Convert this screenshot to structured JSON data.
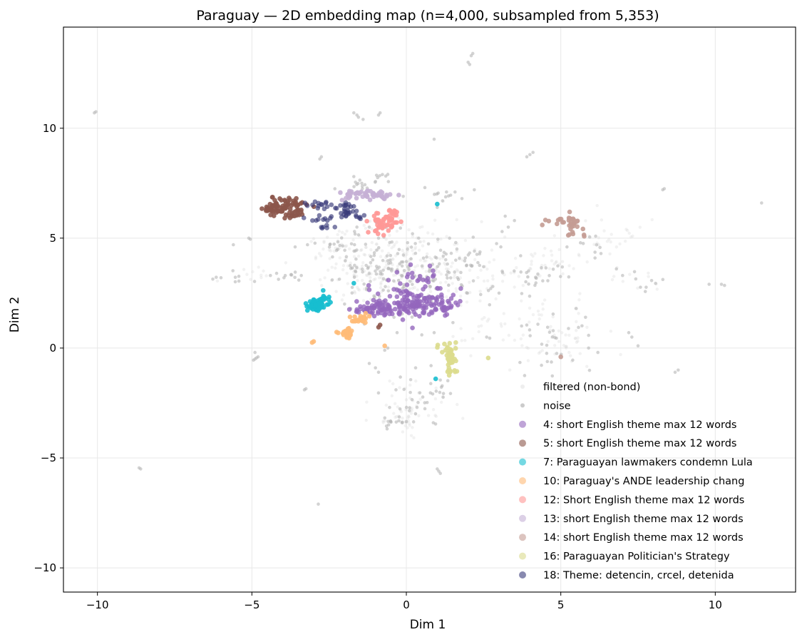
{
  "chart_data": {
    "type": "scatter",
    "title": "Paraguay — 2D embedding map (n=4,000, subsampled from 5,353)",
    "xlabel": "Dim 1",
    "ylabel": "Dim 2",
    "xlim": [
      -11.1,
      12.6
    ],
    "ylim": [
      -11.1,
      14.6
    ],
    "xticks": [
      -10,
      -5,
      0,
      5,
      10
    ],
    "xtick_labels": [
      "−10",
      "−5",
      "0",
      "5",
      "10"
    ],
    "yticks": [
      -10,
      -5,
      0,
      5,
      10
    ],
    "ytick_labels": [
      "−10",
      "−5",
      "0",
      "5",
      "10"
    ],
    "grid": true,
    "legend_position": "lower right",
    "background_groups": [
      {
        "name": "filtered (non-bond)",
        "color": "#d9d9d9",
        "alpha": 0.35,
        "size": 2.2,
        "blobs": [
          [
            0.0,
            4.0,
            1.2,
            0.9,
            140
          ],
          [
            -1.2,
            3.4,
            0.9,
            0.6,
            60
          ],
          [
            1.0,
            3.3,
            0.9,
            0.6,
            60
          ],
          [
            4.4,
            3.8,
            0.6,
            0.4,
            40
          ],
          [
            4.6,
            0.6,
            0.9,
            0.8,
            60
          ],
          [
            0.2,
            -2.5,
            0.6,
            0.6,
            40
          ],
          [
            -0.2,
            -3.3,
            0.4,
            0.2,
            20
          ],
          [
            6.5,
            5.0,
            0.8,
            0.5,
            25
          ],
          [
            -2.5,
            4.6,
            0.6,
            0.4,
            25
          ],
          [
            2.5,
            1.0,
            0.8,
            0.6,
            25
          ],
          [
            -5.0,
            3.3,
            0.5,
            0.2,
            12
          ],
          [
            7.5,
            3.0,
            0.4,
            0.3,
            10
          ]
        ]
      },
      {
        "name": "noise",
        "color": "#b5b5b5",
        "alpha": 0.6,
        "size": 2.3,
        "blobs": [
          [
            -0.3,
            3.8,
            0.9,
            0.9,
            90
          ],
          [
            0.8,
            2.8,
            0.9,
            0.7,
            50
          ],
          [
            -1.5,
            3.7,
            0.6,
            0.5,
            30
          ],
          [
            2.1,
            4.0,
            0.6,
            0.5,
            25
          ],
          [
            4.2,
            3.3,
            0.5,
            0.5,
            25
          ],
          [
            4.8,
            0.2,
            0.6,
            0.6,
            30
          ],
          [
            0.3,
            -2.5,
            0.5,
            0.6,
            25
          ],
          [
            -0.4,
            -3.4,
            0.3,
            0.15,
            14
          ],
          [
            -1.6,
            7.6,
            0.3,
            0.2,
            12
          ],
          [
            -0.8,
            7.7,
            0.2,
            0.15,
            8
          ],
          [
            1.2,
            6.9,
            0.3,
            0.2,
            8
          ],
          [
            -2.2,
            4.6,
            0.4,
            0.2,
            10
          ],
          [
            1.3,
            -1.9,
            0.3,
            0.3,
            10
          ],
          [
            -3.8,
            3.2,
            0.3,
            0.15,
            8
          ],
          [
            7.8,
            3.1,
            0.3,
            0.3,
            8
          ],
          [
            6.0,
            4.7,
            0.3,
            0.3,
            8
          ],
          [
            -5.5,
            3.3,
            0.3,
            0.15,
            8
          ]
        ],
        "specks": [
          [
            -10.1,
            10.7
          ],
          [
            -10.05,
            10.75
          ],
          [
            -8.6,
            -5.5
          ],
          [
            -8.65,
            -5.45
          ],
          [
            2.1,
            13.3
          ],
          [
            2.15,
            13.4
          ],
          [
            2.0,
            13.0
          ],
          [
            2.05,
            12.9
          ],
          [
            -1.6,
            10.6
          ],
          [
            -1.55,
            10.5
          ],
          [
            -1.7,
            10.7
          ],
          [
            -1.4,
            10.4
          ],
          [
            -0.9,
            10.6
          ],
          [
            -0.85,
            10.7
          ],
          [
            1.0,
            -5.5
          ],
          [
            1.05,
            -5.6
          ],
          [
            1.1,
            -5.7
          ],
          [
            -2.85,
            -7.1
          ],
          [
            -5.1,
            5.0
          ],
          [
            -5.05,
            4.95
          ],
          [
            10.2,
            2.9
          ],
          [
            10.3,
            2.85
          ],
          [
            9.8,
            2.9
          ],
          [
            11.5,
            6.6
          ],
          [
            8.3,
            7.2
          ],
          [
            8.35,
            7.25
          ],
          [
            -2.8,
            8.6
          ],
          [
            -2.75,
            8.7
          ],
          [
            4.0,
            8.8
          ],
          [
            4.1,
            8.9
          ],
          [
            3.9,
            8.7
          ],
          [
            0.9,
            9.5
          ],
          [
            -3.3,
            -1.9
          ],
          [
            -3.25,
            -1.85
          ],
          [
            -4.9,
            -0.5
          ],
          [
            -4.85,
            -0.45
          ],
          [
            -4.95,
            -0.55
          ],
          [
            -4.8,
            -0.4
          ],
          [
            -4.9,
            -0.2
          ],
          [
            -6.0,
            3.2
          ],
          [
            -5.6,
            4.7
          ],
          [
            8.8,
            -1.0
          ],
          [
            8.7,
            -1.1
          ],
          [
            7.2,
            0.7
          ],
          [
            7.3,
            0.5
          ],
          [
            7.5,
            0.1
          ],
          [
            -1.2,
            -0.7
          ],
          [
            -1.0,
            -0.9
          ],
          [
            2.6,
            0.5
          ],
          [
            2.7,
            0.45
          ],
          [
            -2.0,
            2.0
          ],
          [
            -1.8,
            1.8
          ],
          [
            -0.4,
            1.4
          ],
          [
            0.5,
            0.6
          ],
          [
            0.3,
            -0.9
          ],
          [
            0.8,
            -0.8
          ],
          [
            -0.7,
            -0.1
          ],
          [
            -0.6,
            0.0
          ],
          [
            0.4,
            5.0
          ],
          [
            0.2,
            5.2
          ],
          [
            -0.1,
            6.9
          ],
          [
            1.0,
            6.4
          ],
          [
            3.1,
            5.3
          ],
          [
            3.3,
            5.5
          ],
          [
            3.2,
            6.0
          ],
          [
            2.2,
            7.2
          ],
          [
            -0.6,
            7.9
          ],
          [
            -1.7,
            7.8
          ],
          [
            3.7,
            4.2
          ],
          [
            3.5,
            5.8
          ],
          [
            5.2,
            4.6
          ],
          [
            6.3,
            4.3
          ],
          [
            7.0,
            3.3
          ],
          [
            6.8,
            3.6
          ],
          [
            5.8,
            1.4
          ],
          [
            5.5,
            1.8
          ],
          [
            6.2,
            -0.2
          ],
          [
            5.9,
            0.0
          ],
          [
            -3.6,
            4.6
          ],
          [
            -3.2,
            4.7
          ],
          [
            -3.4,
            3.3
          ],
          [
            -2.4,
            3.1
          ],
          [
            2.8,
            2.8
          ],
          [
            3.0,
            2.5
          ],
          [
            -4.4,
            3.3
          ],
          [
            -4.2,
            3.4
          ],
          [
            1.4,
            5.0
          ],
          [
            1.6,
            4.8
          ],
          [
            2.5,
            3.7
          ],
          [
            -0.9,
            5.0
          ],
          [
            -1.2,
            5.5
          ],
          [
            0.6,
            7.3
          ],
          [
            1.3,
            7.1
          ],
          [
            1.8,
            6.8
          ],
          [
            -0.3,
            0.7
          ],
          [
            0.9,
            0.7
          ],
          [
            1.5,
            -0.3
          ],
          [
            -0.9,
            -1.1
          ]
        ]
      }
    ],
    "series": [
      {
        "name": "4: short English theme max 12 words",
        "color": "#9467bd",
        "alpha": 0.8,
        "size": 3.3,
        "blobs": [
          [
            0.15,
            2.1,
            0.65,
            0.35,
            130
          ],
          [
            -0.9,
            1.75,
            0.45,
            0.15,
            40
          ],
          [
            1.2,
            1.9,
            0.35,
            0.2,
            30
          ],
          [
            0.6,
            3.1,
            0.3,
            0.4,
            20
          ],
          [
            -1.4,
            1.7,
            0.2,
            0.1,
            10
          ]
        ]
      },
      {
        "name": "5: short English theme max 12 words",
        "color": "#8c564b",
        "alpha": 0.9,
        "size": 3.3,
        "blobs": [
          [
            -3.95,
            6.45,
            0.35,
            0.22,
            70
          ],
          [
            -4.4,
            6.25,
            0.15,
            0.12,
            12
          ],
          [
            -3.6,
            6.1,
            0.15,
            0.1,
            10
          ]
        ],
        "specks": [
          [
            -0.9,
            0.95
          ],
          [
            -0.85,
            1.05
          ]
        ]
      },
      {
        "name": "7: Paraguayan lawmakers condemn Lula",
        "color": "#17becf",
        "alpha": 0.9,
        "size": 3.3,
        "blobs": [
          [
            -2.95,
            1.95,
            0.12,
            0.12,
            60
          ],
          [
            -2.65,
            2.2,
            0.15,
            0.15,
            15
          ]
        ],
        "specks": [
          [
            1.0,
            6.55
          ],
          [
            0.95,
            -1.4
          ],
          [
            -1.7,
            2.95
          ]
        ]
      },
      {
        "name": "10: Paraguay's ANDE leadership chang",
        "color": "#ffbb78",
        "alpha": 0.9,
        "size": 3.3,
        "blobs": [
          [
            -1.9,
            0.65,
            0.12,
            0.1,
            30
          ],
          [
            -1.5,
            1.25,
            0.15,
            0.1,
            20
          ]
        ],
        "specks": [
          [
            -3.05,
            0.25
          ],
          [
            -3.0,
            0.3
          ],
          [
            -0.7,
            0.1
          ],
          [
            -1.2,
            1.45
          ]
        ]
      },
      {
        "name": "12: Short English theme max 12 words",
        "color": "#ff9896",
        "alpha": 0.9,
        "size": 3.3,
        "blobs": [
          [
            -0.7,
            5.7,
            0.25,
            0.25,
            50
          ],
          [
            -0.45,
            6.15,
            0.12,
            0.15,
            10
          ]
        ]
      },
      {
        "name": "13: short English theme max 12 words",
        "color": "#c5b0d5",
        "alpha": 0.9,
        "size": 3.3,
        "blobs": [
          [
            -1.5,
            6.95,
            0.35,
            0.12,
            40
          ],
          [
            -0.8,
            6.95,
            0.15,
            0.1,
            10
          ]
        ]
      },
      {
        "name": "14: short English theme max 12 words",
        "color": "#c49c94",
        "alpha": 0.9,
        "size": 3.3,
        "blobs": [
          [
            5.4,
            5.6,
            0.15,
            0.25,
            25
          ],
          [
            4.95,
            5.75,
            0.2,
            0.05,
            8
          ]
        ],
        "specks": [
          [
            5.75,
            5.15
          ],
          [
            5.0,
            -0.4
          ],
          [
            4.4,
            5.6
          ]
        ]
      },
      {
        "name": "16: Paraguayan Politician's Strategy",
        "color": "#dbdb8d",
        "alpha": 0.9,
        "size": 3.3,
        "blobs": [
          [
            1.45,
            -0.55,
            0.1,
            0.35,
            40
          ],
          [
            1.2,
            -0.15,
            0.12,
            0.2,
            10
          ]
        ],
        "specks": [
          [
            1.6,
            0.25
          ],
          [
            2.65,
            -0.45
          ]
        ]
      },
      {
        "name": "18: Theme: detencin, crcel, detenida",
        "color": "#393b79",
        "alpha": 0.65,
        "size": 3.3,
        "blobs": [
          [
            -2.7,
            6.55,
            0.3,
            0.1,
            15
          ],
          [
            -1.95,
            6.3,
            0.15,
            0.2,
            25
          ],
          [
            -2.55,
            5.9,
            0.25,
            0.08,
            10
          ],
          [
            -2.6,
            5.5,
            0.2,
            0.05,
            6
          ],
          [
            -1.5,
            6.0,
            0.1,
            0.1,
            6
          ]
        ]
      }
    ]
  }
}
